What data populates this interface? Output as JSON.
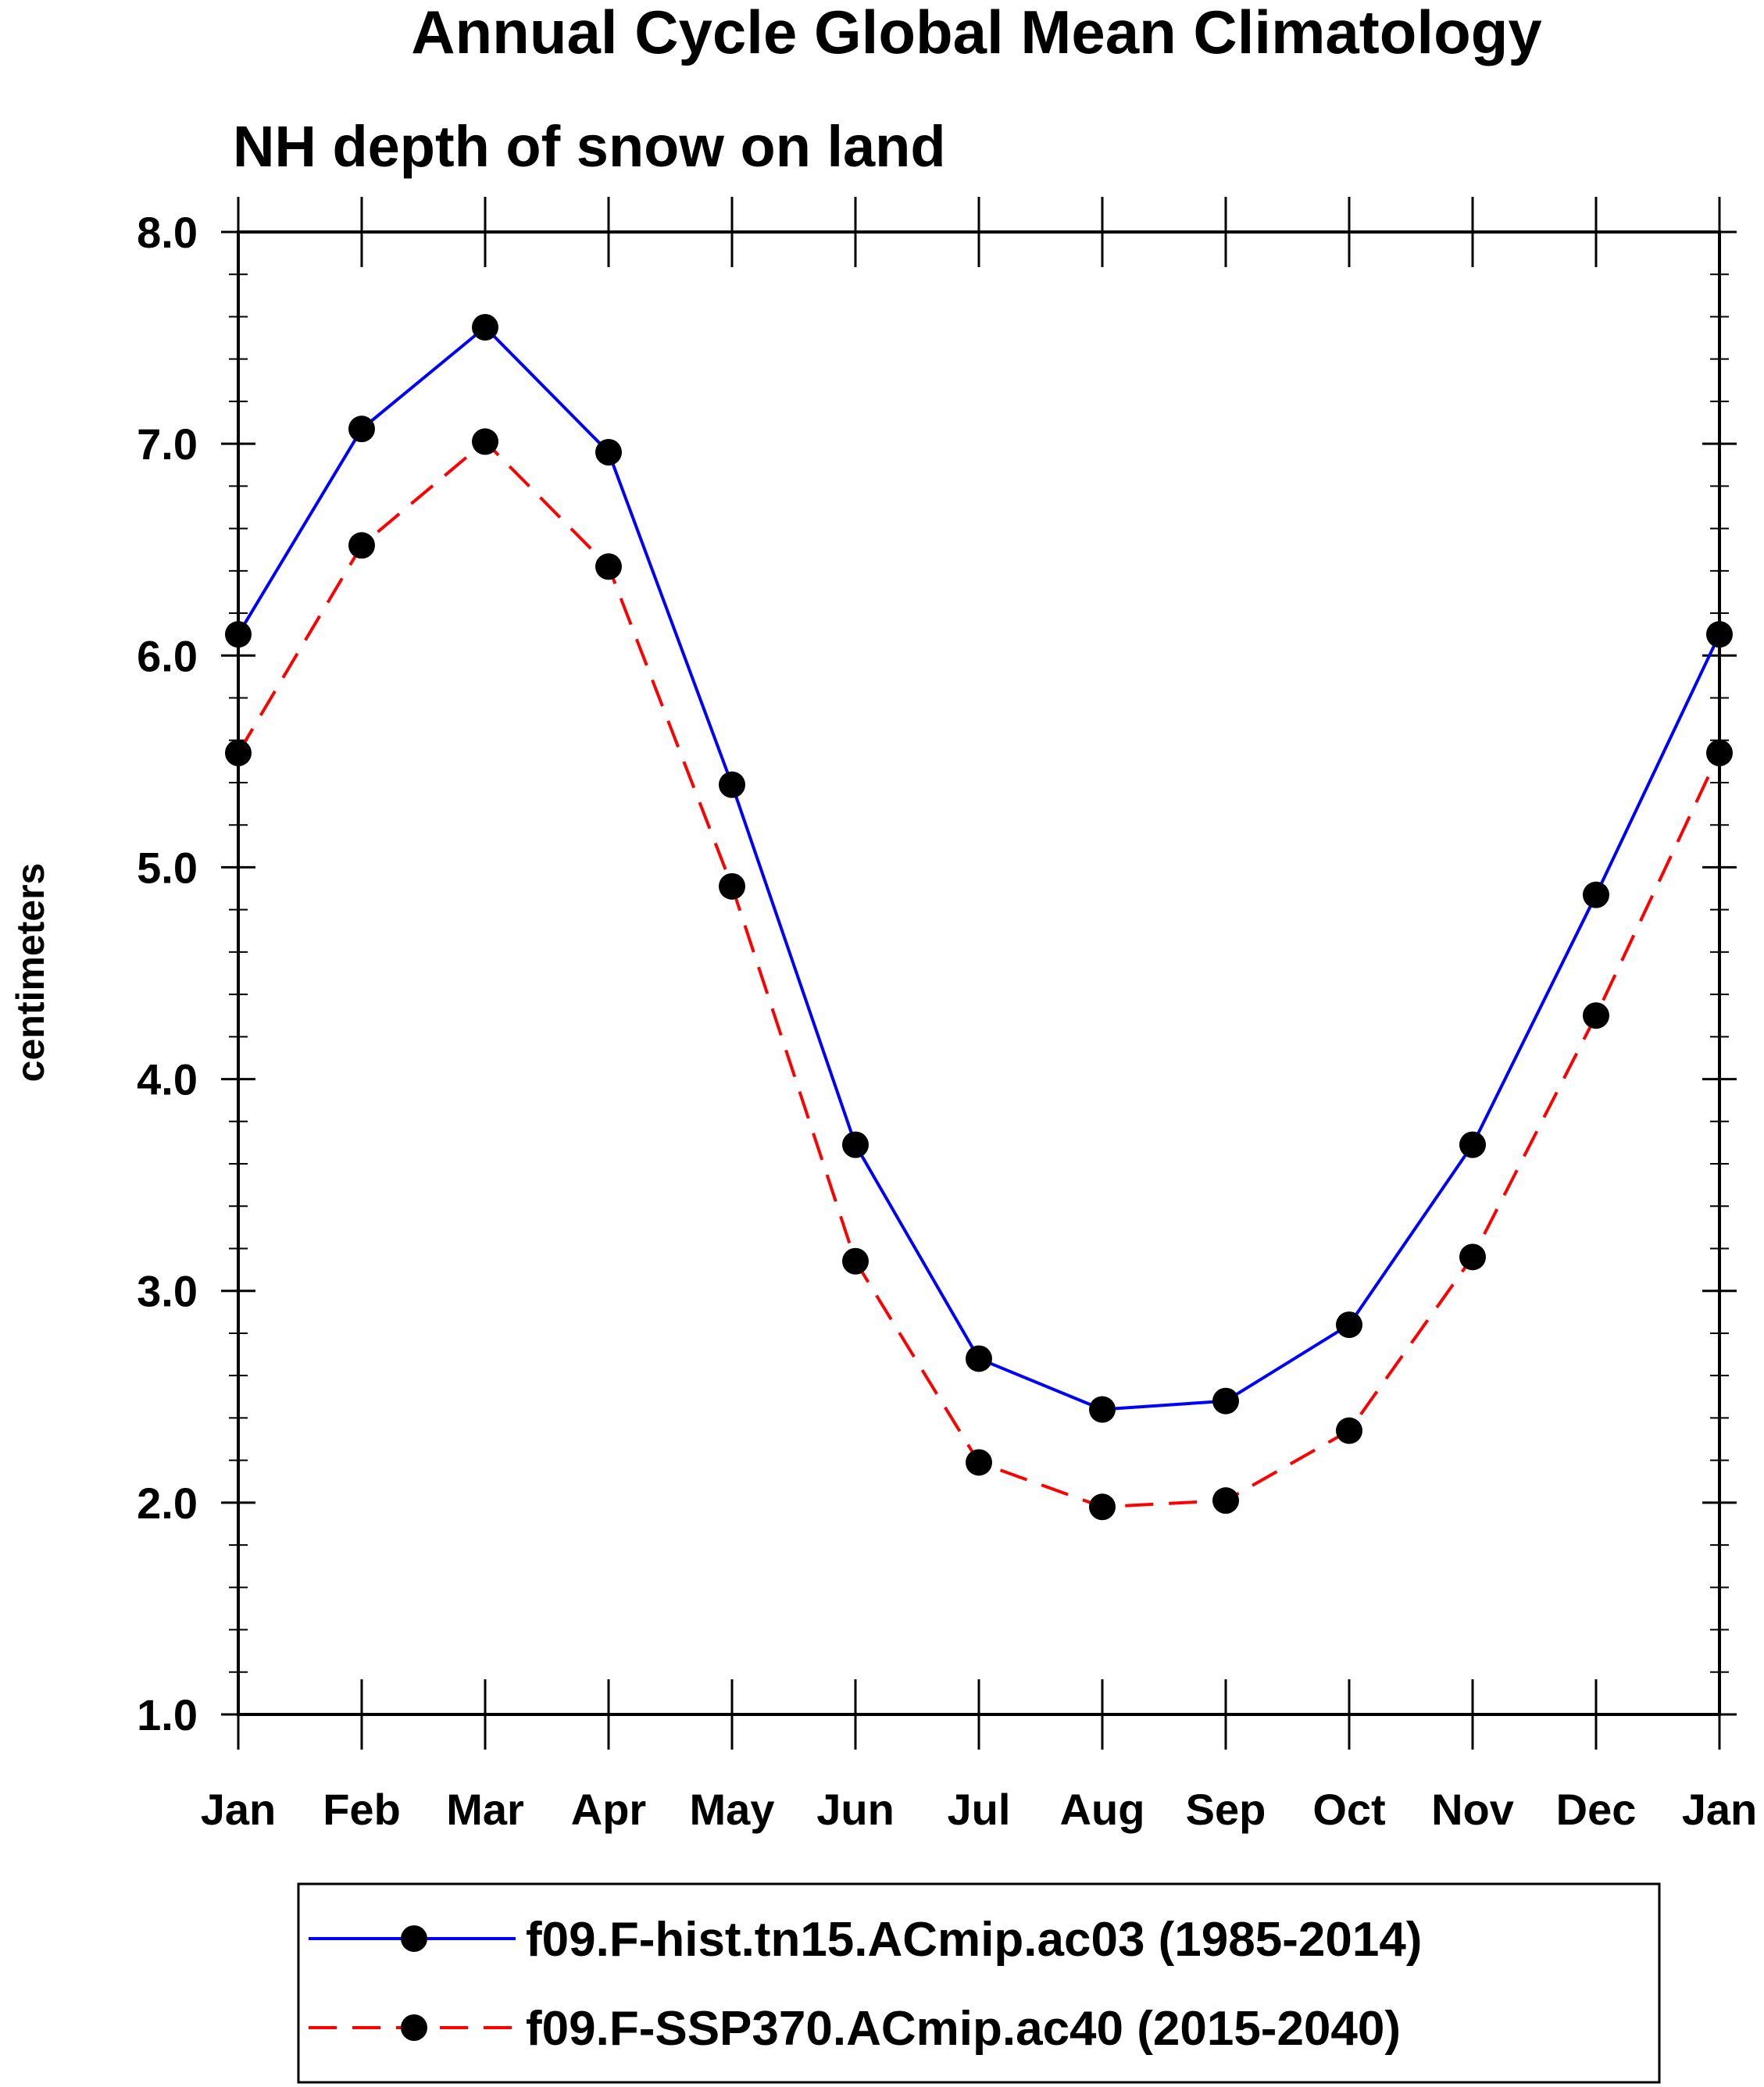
{
  "chart_data": {
    "type": "line",
    "title": "Annual Cycle Global Mean Climatology",
    "subtitle": "NH depth of snow on land",
    "xlabel": "",
    "ylabel": "centimeters",
    "categories": [
      "Jan",
      "Feb",
      "Mar",
      "Apr",
      "May",
      "Jun",
      "Jul",
      "Aug",
      "Sep",
      "Oct",
      "Nov",
      "Dec",
      "Jan"
    ],
    "ylim": [
      1.0,
      8.0
    ],
    "yticks": [
      "1.0",
      "2.0",
      "3.0",
      "4.0",
      "5.0",
      "6.0",
      "7.0",
      "8.0"
    ],
    "y_minor_step": 0.2,
    "grid": false,
    "legend_position": "bottom",
    "series": [
      {
        "name": "f09.F-hist.tn15.ACmip.ac03 (1985-2014)",
        "color": "#0000ff",
        "line_style": "solid",
        "marker": "filled-circle",
        "values": [
          6.1,
          7.07,
          7.55,
          6.96,
          5.39,
          3.69,
          2.68,
          2.44,
          2.48,
          2.84,
          3.69,
          4.87,
          6.1
        ]
      },
      {
        "name": "f09.F-SSP370.ACmip.ac40 (2015-2040)",
        "color": "#ff0000",
        "line_style": "dashed",
        "marker": "filled-circle",
        "values": [
          5.54,
          6.52,
          7.01,
          6.42,
          4.91,
          3.14,
          2.19,
          1.98,
          2.01,
          2.34,
          3.16,
          4.3,
          5.54
        ]
      }
    ]
  }
}
